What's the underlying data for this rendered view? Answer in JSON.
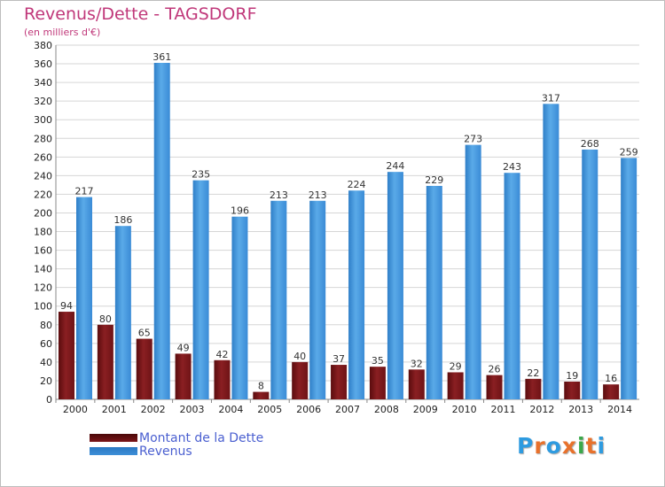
{
  "chart_data": {
    "type": "bar",
    "title": "Revenus/Dette - TAGSDORF",
    "subtitle": "(en milliers d'€)",
    "categories": [
      "2000",
      "2001",
      "2002",
      "2003",
      "2004",
      "2005",
      "2006",
      "2007",
      "2008",
      "2009",
      "2010",
      "2011",
      "2012",
      "2013",
      "2014"
    ],
    "series": [
      {
        "name": "Montant de la Dette",
        "color": "#7a1518",
        "values": [
          94,
          80,
          65,
          49,
          42,
          8,
          40,
          37,
          35,
          32,
          29,
          26,
          22,
          19,
          16
        ]
      },
      {
        "name": "Revenus",
        "color": "#3d8fd8",
        "values": [
          217,
          186,
          361,
          235,
          196,
          213,
          213,
          224,
          244,
          229,
          273,
          243,
          317,
          268,
          259
        ]
      }
    ],
    "ylim": [
      0,
      380
    ],
    "ytick_step": 20,
    "xlabel": "",
    "ylabel": "",
    "grid": true,
    "legend_position": "bottom-left"
  },
  "logo": {
    "text": "Proxiti",
    "colors": [
      "#2e9be0",
      "#e8712b",
      "#2e9be0",
      "#e8712b",
      "#3aa84a",
      "#e8712b",
      "#2e9be0"
    ]
  }
}
